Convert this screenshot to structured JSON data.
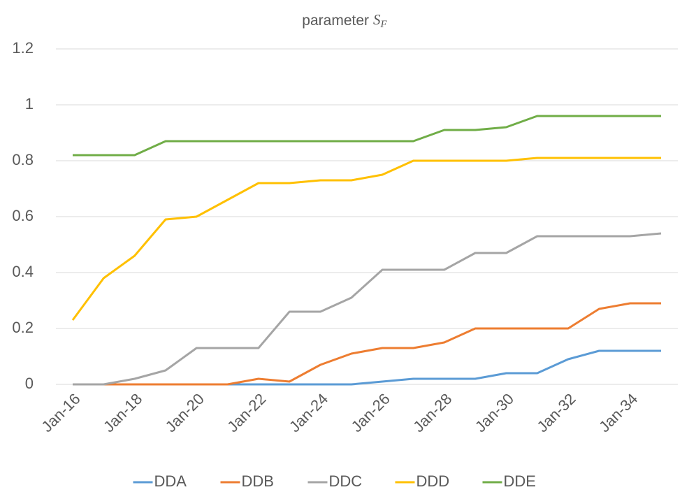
{
  "chart_data": {
    "type": "line",
    "title": "parameter",
    "title_symbol": "S",
    "title_subscript": "F",
    "categories": [
      "Jan-16",
      null,
      "Jan-18",
      null,
      "Jan-20",
      null,
      "Jan-22",
      null,
      "Jan-24",
      null,
      "Jan-26",
      null,
      "Jan-28",
      null,
      "Jan-30",
      null,
      "Jan-32",
      null,
      "Jan-34",
      null
    ],
    "series": [
      {
        "name": "DDA",
        "color": "#5b9bd5",
        "values": [
          0,
          0,
          0,
          0,
          0,
          0,
          0,
          0,
          0,
          0,
          0.01,
          0.02,
          0.02,
          0.02,
          0.04,
          0.04,
          0.09,
          0.12,
          0.12,
          0.12
        ]
      },
      {
        "name": "DDB",
        "color": "#ed7d31",
        "values": [
          0,
          0,
          0,
          0,
          0,
          0,
          0.02,
          0.01,
          0.07,
          0.11,
          0.13,
          0.13,
          0.15,
          0.2,
          0.2,
          0.2,
          0.2,
          0.27,
          0.29,
          0.29
        ]
      },
      {
        "name": "DDC",
        "color": "#a5a5a5",
        "values": [
          0,
          0,
          0.02,
          0.05,
          0.13,
          0.13,
          0.13,
          0.26,
          0.26,
          0.31,
          0.41,
          0.41,
          0.41,
          0.47,
          0.47,
          0.53,
          0.53,
          0.53,
          0.53,
          0.54
        ]
      },
      {
        "name": "DDD",
        "color": "#ffc000",
        "values": [
          0.23,
          0.38,
          0.46,
          0.59,
          0.6,
          0.66,
          0.72,
          0.72,
          0.73,
          0.73,
          0.75,
          0.8,
          0.8,
          0.8,
          0.8,
          0.81,
          0.81,
          0.81,
          0.81,
          0.81
        ]
      },
      {
        "name": "DDE",
        "color": "#70ad47",
        "values": [
          0.82,
          0.82,
          0.82,
          0.87,
          0.87,
          0.87,
          0.87,
          0.87,
          0.87,
          0.87,
          0.87,
          0.87,
          0.91,
          0.91,
          0.92,
          0.96,
          0.96,
          0.96,
          0.96,
          0.96
        ]
      }
    ],
    "ylim": [
      0,
      1.2
    ],
    "yticks": [
      0,
      0.2,
      0.4,
      0.6,
      0.8,
      1,
      1.2
    ],
    "grid": true,
    "legend": "bottom"
  }
}
